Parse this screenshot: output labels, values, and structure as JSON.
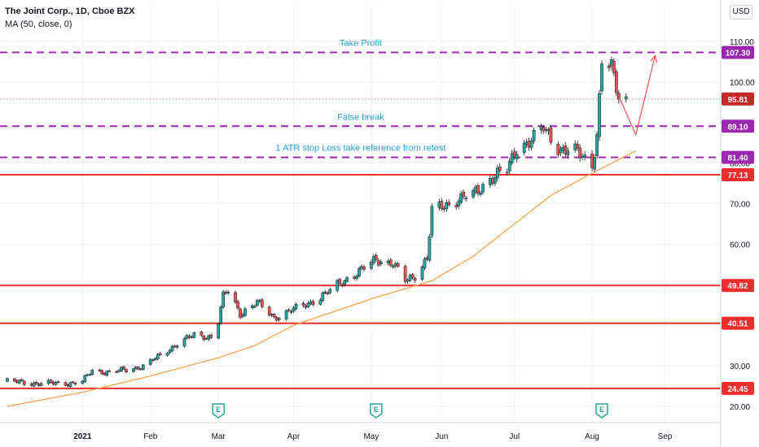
{
  "header": {
    "title": "The Joint Corp., 1D, Cboe BZX",
    "indicator": "MA (50, close, 0)"
  },
  "currency_button": "USD",
  "colors": {
    "up": "#26a69a",
    "down": "#ef5350",
    "candle_outline": "#131722",
    "ma": "#f7a24a",
    "support": "#ef2d2d",
    "dashed": "#9c27b0",
    "annotation": "#2a9fd6",
    "arrow": "#ef5350"
  },
  "chart_data": {
    "type": "candlestick",
    "title": "The Joint Corp., 1D, Cboe BZX",
    "indicator": "MA (50, close, 0)",
    "ylim": [
      16,
      113
    ],
    "y_ticks": [
      20,
      30,
      40,
      50,
      60,
      70,
      80,
      90,
      100,
      110
    ],
    "y_tick_labels": [
      "20.00",
      "30.00",
      "40.00",
      "50.00",
      "60.00",
      "70.00",
      "80.00",
      "90.00",
      "100.00",
      "110.00"
    ],
    "x_ticks": [
      {
        "label": "2021",
        "date": "2021-01-04",
        "bold": true
      },
      {
        "label": "Feb",
        "date": "2021-02-01"
      },
      {
        "label": "Mar",
        "date": "2021-03-01"
      },
      {
        "label": "Apr",
        "date": "2021-04-01"
      },
      {
        "label": "May",
        "date": "2021-05-03"
      },
      {
        "label": "Jun",
        "date": "2021-06-01"
      },
      {
        "label": "Jul",
        "date": "2021-07-01"
      },
      {
        "label": "Aug",
        "date": "2021-08-02"
      },
      {
        "label": "Sep",
        "date": "2021-09-01"
      }
    ],
    "price_path": [
      [
        "2020-12-04",
        26.2
      ],
      [
        "2020-12-18",
        25.6
      ],
      [
        "2020-12-31",
        25.8
      ],
      [
        "2021-01-04",
        26.1
      ],
      [
        "2021-01-08",
        28.9
      ],
      [
        "2021-01-15",
        28.4
      ],
      [
        "2021-01-22",
        29.0
      ],
      [
        "2021-01-29",
        30.0
      ],
      [
        "2021-02-05",
        32.5
      ],
      [
        "2021-02-12",
        35.5
      ],
      [
        "2021-02-19",
        37.5
      ],
      [
        "2021-02-26",
        37.2
      ],
      [
        "2021-03-01",
        41.0
      ],
      [
        "2021-03-03",
        47.0
      ],
      [
        "2021-03-05",
        48.5
      ],
      [
        "2021-03-10",
        43.0
      ],
      [
        "2021-03-17",
        45.5
      ],
      [
        "2021-03-24",
        42.0
      ],
      [
        "2021-03-31",
        43.5
      ],
      [
        "2021-04-07",
        45.5
      ],
      [
        "2021-04-14",
        47.5
      ],
      [
        "2021-04-21",
        51.0
      ],
      [
        "2021-04-28",
        53.0
      ],
      [
        "2021-05-05",
        56.5
      ],
      [
        "2021-05-12",
        55.0
      ],
      [
        "2021-05-17",
        51.0
      ],
      [
        "2021-05-21",
        52.5
      ],
      [
        "2021-05-26",
        56.5
      ],
      [
        "2021-05-28",
        68.0
      ],
      [
        "2021-06-07",
        71.0
      ],
      [
        "2021-06-14",
        72.0
      ],
      [
        "2021-06-21",
        76.5
      ],
      [
        "2021-06-28",
        78.0
      ],
      [
        "2021-07-02",
        84.0
      ],
      [
        "2021-07-09",
        86.0
      ],
      [
        "2021-07-13",
        88.5
      ],
      [
        "2021-07-20",
        83.5
      ],
      [
        "2021-07-27",
        82.5
      ],
      [
        "2021-08-02",
        80.0
      ],
      [
        "2021-08-04",
        87.0
      ],
      [
        "2021-08-06",
        105.0
      ],
      [
        "2021-08-10",
        103.0
      ],
      [
        "2021-08-13",
        96.5
      ],
      [
        "2021-08-16",
        95.8
      ]
    ],
    "moving_average": [
      [
        "2020-12-04",
        20.0
      ],
      [
        "2021-01-04",
        23.5
      ],
      [
        "2021-02-01",
        27.5
      ],
      [
        "2021-03-01",
        32.0
      ],
      [
        "2021-03-16",
        35.0
      ],
      [
        "2021-04-01",
        40.0
      ],
      [
        "2021-05-03",
        46.5
      ],
      [
        "2021-05-28",
        51.0
      ],
      [
        "2021-06-14",
        57.0
      ],
      [
        "2021-07-01",
        65.0
      ],
      [
        "2021-07-16",
        72.0
      ],
      [
        "2021-08-02",
        77.5
      ],
      [
        "2021-08-10",
        80.0
      ],
      [
        "2021-08-20",
        83.0
      ]
    ],
    "earnings_markers": [
      "2021-03-01",
      "2021-05-05",
      "2021-08-06"
    ],
    "horizontal_levels": [
      {
        "value": 107.3,
        "label": "107.30",
        "style": "dashed",
        "note": "Take Profit"
      },
      {
        "value": 89.1,
        "label": "89.10",
        "style": "dashed",
        "note": "False break"
      },
      {
        "value": 81.4,
        "label": "81.40",
        "style": "dashed",
        "note": "1 ATR stop Loss take reference from retest"
      },
      {
        "value": 77.13,
        "label": "77.13",
        "style": "solid"
      },
      {
        "value": 49.82,
        "label": "49.82",
        "style": "solid"
      },
      {
        "value": 40.51,
        "label": "40.51",
        "style": "solid"
      },
      {
        "value": 24.45,
        "label": "24.45",
        "style": "solid"
      }
    ],
    "last_price": {
      "value": 95.81,
      "label": "95.81"
    },
    "projection_path": [
      [
        "2021-08-13",
        96.5
      ],
      [
        "2021-08-20",
        87.0
      ],
      [
        "2021-08-28",
        106.5
      ]
    ]
  }
}
